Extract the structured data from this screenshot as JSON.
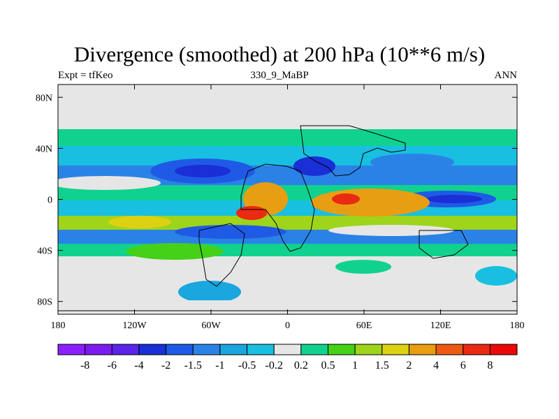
{
  "title": "Divergence (smoothed) at 200 hPa (10**6 m/s)",
  "subtitle": {
    "left": "Expt = tfKeo",
    "center": "330_9_MaBP",
    "right": "ANN"
  },
  "chart_data": {
    "type": "heatmap",
    "projection": "cylindrical equidistant",
    "lon_range": [
      -180,
      180
    ],
    "lat_range": [
      -90,
      90
    ],
    "x_ticks": [
      {
        "value": -180,
        "label": "180"
      },
      {
        "value": -120,
        "label": "120W"
      },
      {
        "value": -60,
        "label": "60W"
      },
      {
        "value": 0,
        "label": "0"
      },
      {
        "value": 60,
        "label": "60E"
      },
      {
        "value": 120,
        "label": "120E"
      },
      {
        "value": 180,
        "label": "180"
      }
    ],
    "y_ticks": [
      {
        "value": 80,
        "label": "80N"
      },
      {
        "value": 40,
        "label": "40N"
      },
      {
        "value": 0,
        "label": "0"
      },
      {
        "value": -40,
        "label": "40S"
      },
      {
        "value": -80,
        "label": "80S"
      }
    ],
    "contour_levels": [
      "-8",
      "-6",
      "-4",
      "-2",
      "-1.5",
      "-1",
      "-0.5",
      "-0.2",
      "0.2",
      "0.5",
      "1",
      "1.5",
      "2",
      "4",
      "6",
      "8"
    ],
    "colors": [
      "#8a20ff",
      "#7a1cf0",
      "#5a23e8",
      "#1a2fd6",
      "#1f5ae6",
      "#2b82e6",
      "#1aa6de",
      "#18bfe0",
      "#e6e6e6",
      "#10d28e",
      "#44d118",
      "#9ed41a",
      "#dcd112",
      "#e89e12",
      "#ee5a12",
      "#ea2a12",
      "#ea0808"
    ],
    "background": "#e6e6e6",
    "contour_line_color": "#000000"
  }
}
